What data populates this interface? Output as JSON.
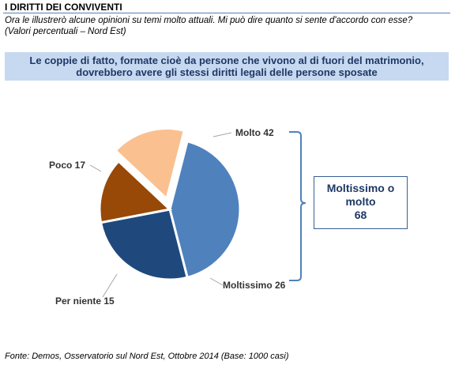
{
  "header": {
    "title": "I DIRITTI DEI CONVIVENTI",
    "intro_line1": "Ora le illustrerò alcune opinioni su temi molto attuali. Mi può dire quanto si sente d'accordo con esse?",
    "intro_line2": "(Valori percentuali – Nord Est)"
  },
  "statement": {
    "line1": "Le coppie di fatto, formate cioè da persone che vivono al di fuori del matrimonio,",
    "line2": "dovrebbero avere gli stessi diritti legali delle persone sposate"
  },
  "chart_data": {
    "type": "pie",
    "slices": [
      {
        "label": "Molto",
        "value": 42,
        "color": "#4f81bd",
        "text": "Molto 42"
      },
      {
        "label": "Moltissimo",
        "value": 26,
        "color": "#1f497d",
        "text": "Moltissimo 26"
      },
      {
        "label": "Per niente",
        "value": 15,
        "color": "#984807",
        "text": "Per niente 15"
      },
      {
        "label": "Poco",
        "value": 17,
        "color": "#fac090",
        "text": "Poco 17",
        "exploded": true
      }
    ]
  },
  "summary": {
    "line1": "Moltissimo o",
    "line2": "molto",
    "value": "68"
  },
  "footer": {
    "source": "Fonte: Demos, Osservatorio sul Nord Est, Ottobre 2014 (Base: 1000 casi)"
  }
}
